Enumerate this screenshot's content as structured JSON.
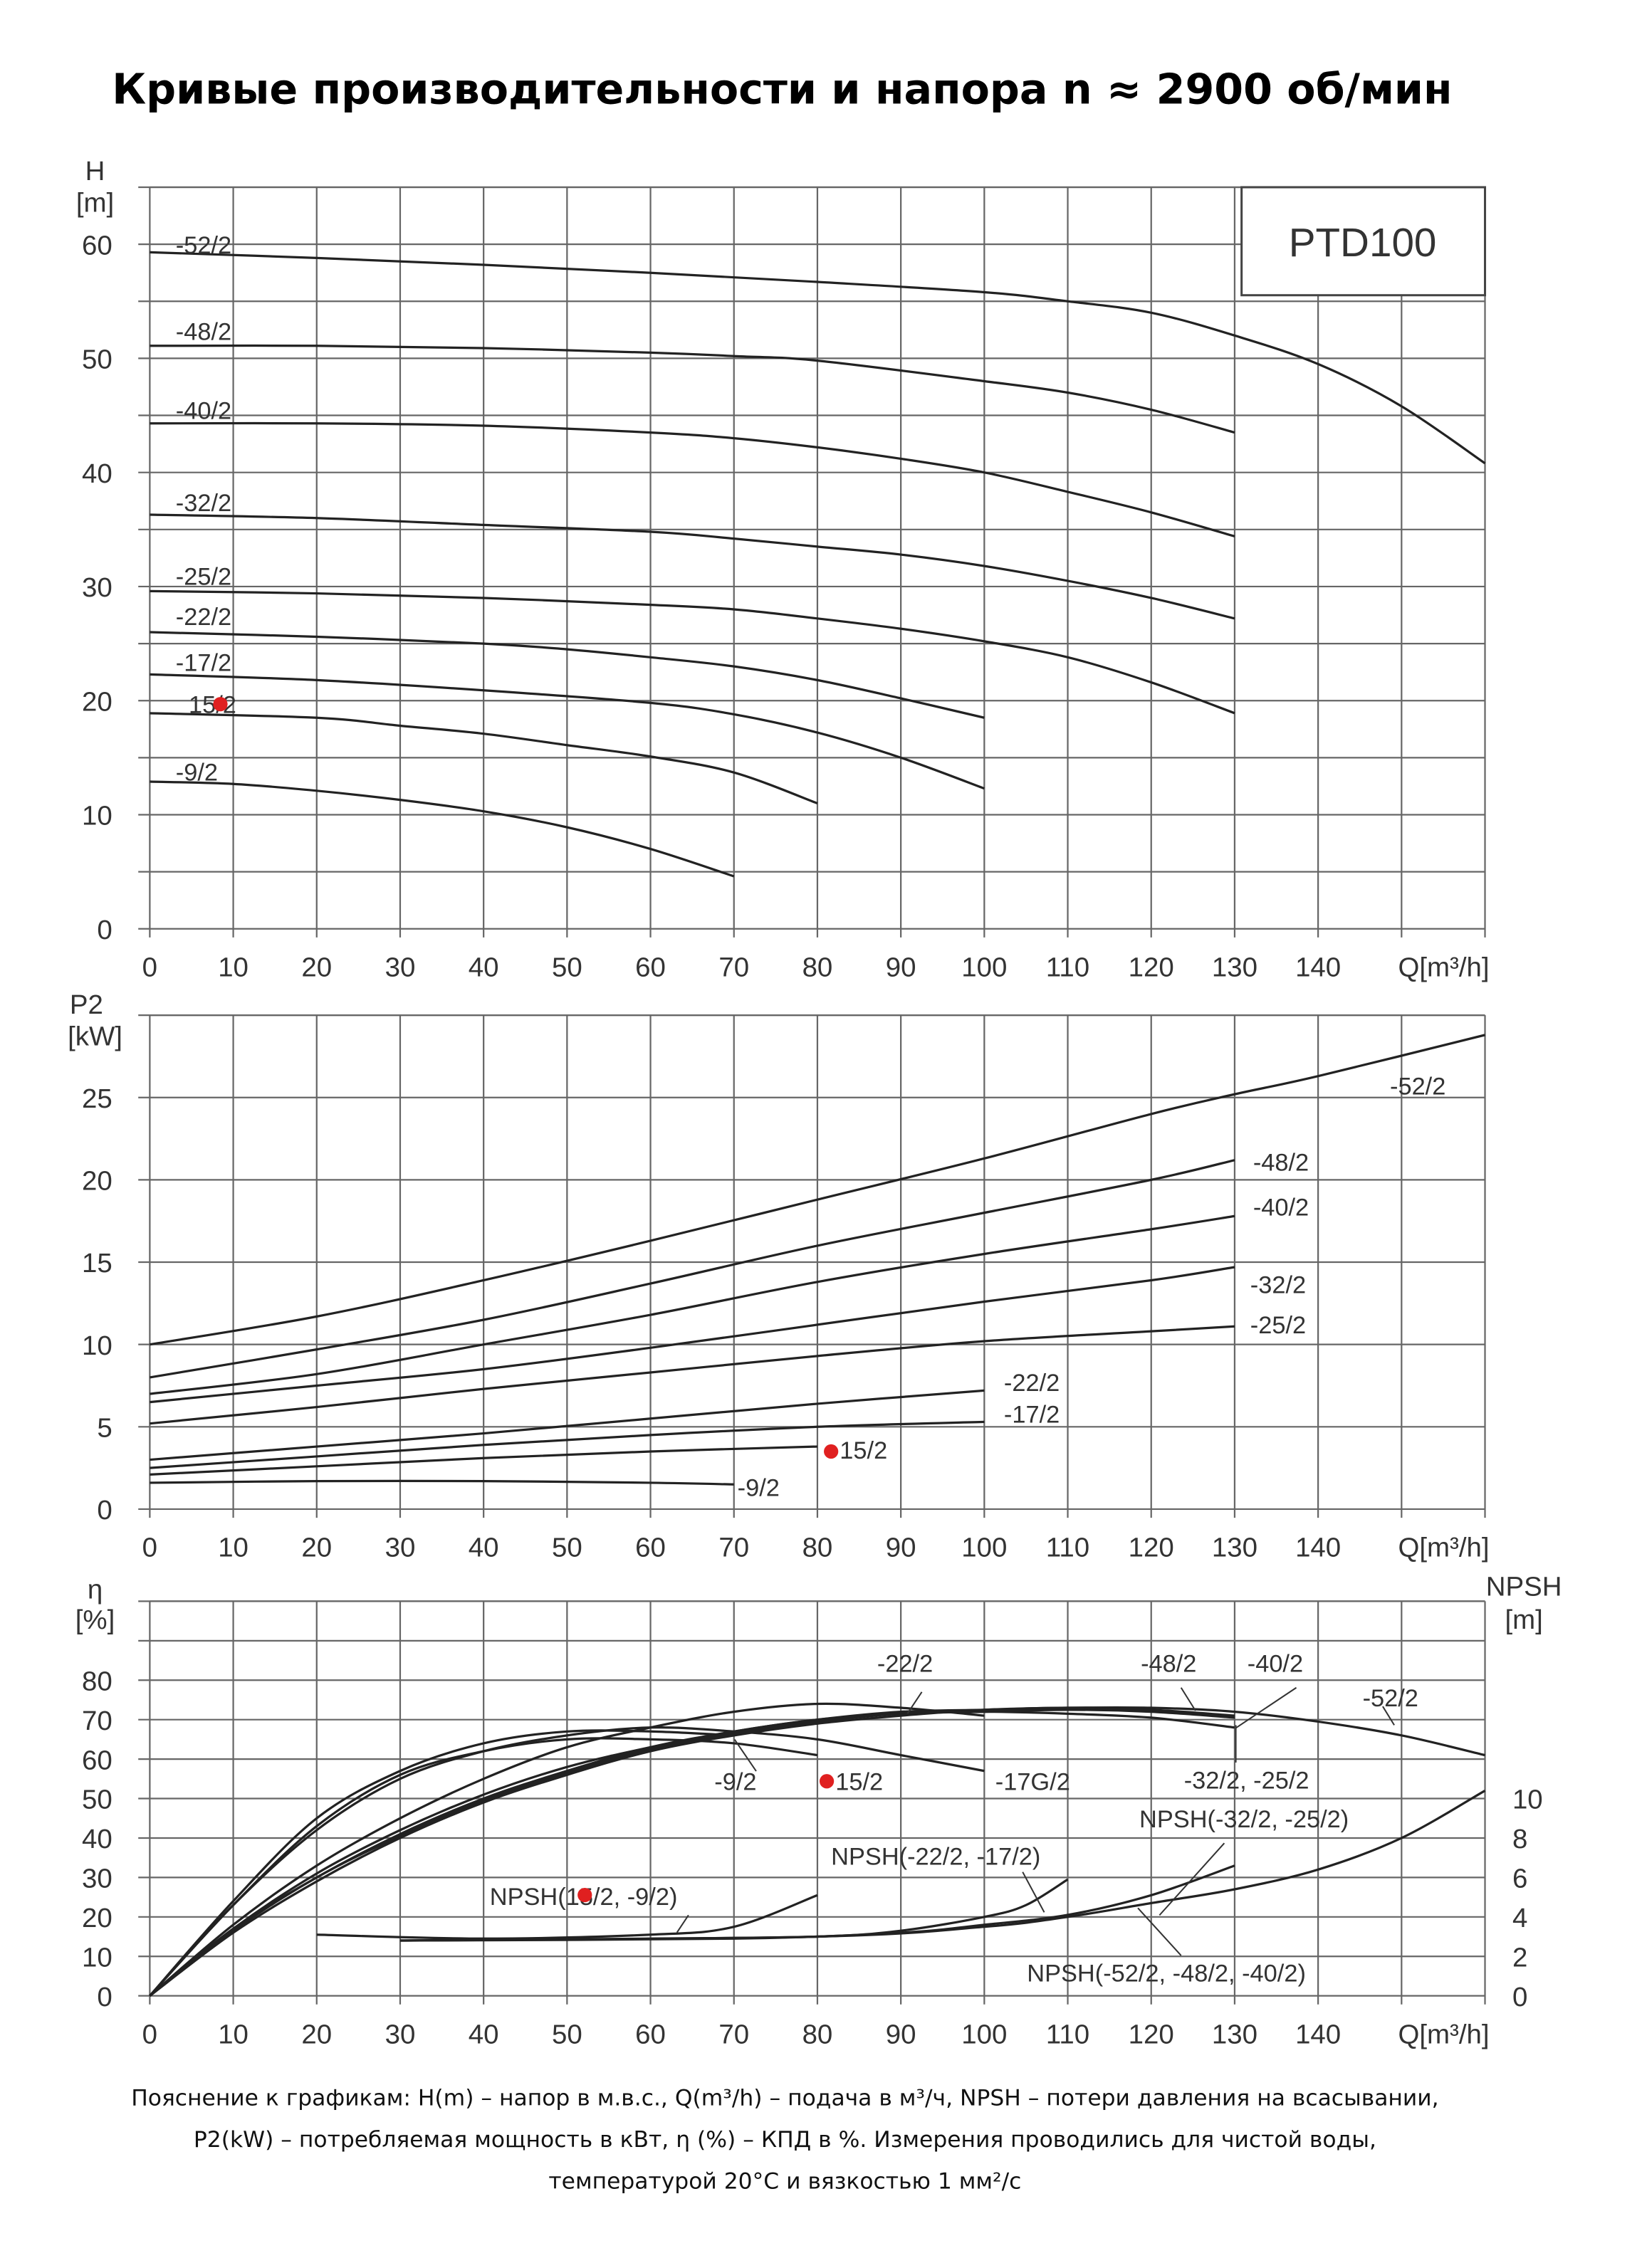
{
  "title": "Кривые производительности и напора n ≈ 2900 об/мин",
  "footer": [
    "Пояснение к графикам: H(m) – напор в м.в.с., Q(m³/h) – подача в м³/ч, NPSH – потери давления на всасывании,",
    "P2(kW) – потребляемая мощность в кВт, η (%) – КПД в %. Измерения проводились для чистой воды,",
    "температурой 20°C и вязкостью 1 мм²/с"
  ],
  "colors": {
    "curve": "#222222",
    "grid": "#666666",
    "marker": "#e02020"
  },
  "chart_data": [
    {
      "type": "line",
      "model_label": "PTD100",
      "ylabel_symbol": "H",
      "ylabel_unit": "[m]",
      "xlabel": "Q[m³/h]",
      "xlim": [
        0,
        160
      ],
      "ylim": [
        0,
        65
      ],
      "xticks": [
        0,
        10,
        20,
        30,
        40,
        50,
        60,
        70,
        80,
        90,
        100,
        110,
        120,
        130,
        140
      ],
      "yticks": [
        0,
        10,
        20,
        30,
        40,
        50,
        60
      ],
      "grid": true,
      "series": [
        {
          "name": "-52/2",
          "x": [
            0,
            20,
            40,
            60,
            80,
            100,
            110,
            120,
            130,
            140,
            150,
            160
          ],
          "y": [
            59.3,
            58.8,
            58.2,
            57.5,
            56.7,
            55.8,
            55,
            54,
            52,
            49.5,
            45.8,
            40.8
          ]
        },
        {
          "name": "-48/2",
          "x": [
            0,
            20,
            40,
            60,
            70,
            80,
            100,
            110,
            120,
            130
          ],
          "y": [
            51.1,
            51.1,
            50.9,
            50.5,
            50.2,
            49.8,
            48,
            47,
            45.5,
            43.5
          ]
        },
        {
          "name": "-40/2",
          "x": [
            0,
            20,
            40,
            60,
            70,
            80,
            90,
            100,
            110,
            120,
            130
          ],
          "y": [
            44.3,
            44.3,
            44.1,
            43.5,
            43,
            42.2,
            41.2,
            40,
            38.3,
            36.5,
            34.4
          ]
        },
        {
          "name": "-32/2",
          "x": [
            0,
            20,
            40,
            60,
            70,
            80,
            90,
            100,
            110,
            120,
            130
          ],
          "y": [
            36.3,
            36,
            35.4,
            34.8,
            34.2,
            33.5,
            32.8,
            31.8,
            30.5,
            29,
            27.2
          ]
        },
        {
          "name": "-25/2",
          "x": [
            0,
            20,
            40,
            60,
            70,
            80,
            90,
            100,
            110,
            120,
            130
          ],
          "y": [
            29.6,
            29.4,
            29,
            28.4,
            28,
            27.2,
            26.3,
            25.2,
            23.8,
            21.6,
            18.9
          ]
        },
        {
          "name": "-22/2",
          "x": [
            0,
            20,
            40,
            50,
            60,
            70,
            80,
            90,
            100
          ],
          "y": [
            26,
            25.6,
            25,
            24.5,
            23.8,
            23,
            21.8,
            20.2,
            18.5
          ]
        },
        {
          "name": "-17/2",
          "x": [
            0,
            20,
            40,
            60,
            70,
            80,
            90,
            100
          ],
          "y": [
            22.3,
            21.8,
            20.9,
            19.8,
            18.8,
            17.2,
            15,
            12.3
          ]
        },
        {
          "name": "15/2",
          "x": [
            0,
            20,
            30,
            40,
            50,
            60,
            70,
            80
          ],
          "y": [
            18.9,
            18.5,
            17.8,
            17.1,
            16.1,
            15.1,
            13.7,
            11
          ]
        },
        {
          "name": "-9/2",
          "x": [
            0,
            10,
            20,
            30,
            40,
            50,
            60,
            70
          ],
          "y": [
            12.9,
            12.7,
            12.1,
            11.3,
            10.3,
            8.9,
            7,
            4.6
          ]
        }
      ]
    },
    {
      "type": "line",
      "ylabel_symbol": "P2",
      "ylabel_unit": "[kW]",
      "xlabel": "Q[m³/h]",
      "xlim": [
        0,
        160
      ],
      "ylim": [
        0,
        30
      ],
      "xticks": [
        0,
        10,
        20,
        30,
        40,
        50,
        60,
        70,
        80,
        90,
        100,
        110,
        120,
        130,
        140
      ],
      "yticks": [
        0,
        5,
        10,
        15,
        20,
        25
      ],
      "grid": true,
      "series": [
        {
          "name": "-52/2",
          "x": [
            0,
            20,
            40,
            60,
            80,
            100,
            120,
            130,
            140,
            160
          ],
          "y": [
            10,
            11.7,
            13.9,
            16.3,
            18.8,
            21.3,
            24,
            25.2,
            26.3,
            28.8
          ]
        },
        {
          "name": "-48/2",
          "x": [
            0,
            20,
            40,
            60,
            80,
            100,
            120,
            130
          ],
          "y": [
            8,
            9.7,
            11.5,
            13.7,
            16,
            18,
            20,
            21.2
          ]
        },
        {
          "name": "-40/2",
          "x": [
            0,
            20,
            40,
            60,
            80,
            100,
            120,
            130
          ],
          "y": [
            7,
            8.2,
            10,
            11.8,
            13.8,
            15.5,
            17,
            17.8
          ]
        },
        {
          "name": "-32/2",
          "x": [
            0,
            20,
            40,
            60,
            80,
            100,
            120,
            130
          ],
          "y": [
            6.5,
            7.5,
            8.5,
            9.8,
            11.2,
            12.6,
            13.9,
            14.7
          ]
        },
        {
          "name": "-25/2",
          "x": [
            0,
            20,
            40,
            60,
            80,
            100,
            120,
            130
          ],
          "y": [
            5.2,
            6.2,
            7.3,
            8.3,
            9.3,
            10.2,
            10.8,
            11.1
          ]
        },
        {
          "name": "-22/2",
          "x": [
            0,
            20,
            40,
            60,
            80,
            100
          ],
          "y": [
            3,
            3.8,
            4.6,
            5.5,
            6.4,
            7.2
          ]
        },
        {
          "name": "-17/2",
          "x": [
            0,
            20,
            40,
            60,
            80,
            100
          ],
          "y": [
            2.5,
            3.2,
            3.9,
            4.5,
            5,
            5.3
          ]
        },
        {
          "name": "15/2",
          "x": [
            0,
            20,
            40,
            60,
            80
          ],
          "y": [
            2.1,
            2.6,
            3.1,
            3.5,
            3.8
          ]
        },
        {
          "name": "-9/2",
          "x": [
            0,
            20,
            40,
            60,
            70
          ],
          "y": [
            1.6,
            1.7,
            1.7,
            1.6,
            1.5
          ]
        }
      ]
    },
    {
      "type": "line",
      "ylabel_symbol": "η",
      "ylabel_unit": "[%]",
      "y2label_symbol": "NPSH",
      "y2label_unit": "[m]",
      "xlabel": "Q[m³/h]",
      "xlim": [
        0,
        160
      ],
      "ylim": [
        0,
        100
      ],
      "y2lim": [
        0,
        20
      ],
      "xticks": [
        0,
        10,
        20,
        30,
        40,
        50,
        60,
        70,
        80,
        90,
        100,
        110,
        120,
        130,
        140
      ],
      "yticks": [
        0,
        10,
        20,
        30,
        40,
        50,
        60,
        70,
        80
      ],
      "y2ticks": [
        0,
        2,
        4,
        6,
        8,
        10
      ],
      "grid": true,
      "series": [
        {
          "name": "-9/2",
          "axis": "eta",
          "x": [
            0,
            10,
            20,
            30,
            40,
            50,
            60,
            70
          ],
          "y": [
            0,
            24,
            45,
            57,
            64,
            67,
            67,
            66
          ]
        },
        {
          "name": "15/2",
          "axis": "eta",
          "x": [
            0,
            10,
            20,
            30,
            40,
            50,
            60,
            70,
            80
          ],
          "y": [
            0,
            23,
            43,
            56,
            62,
            65,
            65,
            64,
            61
          ]
        },
        {
          "name": "-17G/2",
          "axis": "eta",
          "x": [
            0,
            10,
            20,
            30,
            40,
            50,
            60,
            70,
            80,
            90,
            100
          ],
          "y": [
            0,
            23,
            42,
            55,
            62,
            66,
            68,
            67,
            65,
            61,
            57
          ]
        },
        {
          "name": "-22/2",
          "axis": "eta",
          "x": [
            0,
            10,
            20,
            30,
            40,
            50,
            60,
            70,
            80,
            90,
            100
          ],
          "y": [
            0,
            18,
            33,
            45,
            55,
            63,
            68,
            72,
            74,
            73,
            71
          ]
        },
        {
          "name": "-32/2, -25/2",
          "axis": "eta",
          "x": [
            0,
            10,
            20,
            30,
            40,
            50,
            60,
            70,
            80,
            90,
            100,
            110,
            120,
            130
          ],
          "y": [
            0,
            17,
            31,
            42,
            51,
            58,
            63,
            67,
            70,
            71.5,
            72,
            71.5,
            70.5,
            68
          ]
        },
        {
          "name": "-48/2",
          "axis": "eta",
          "x": [
            0,
            10,
            20,
            30,
            40,
            50,
            60,
            70,
            80,
            90,
            100,
            110,
            120,
            130
          ],
          "y": [
            0,
            17,
            30,
            41,
            50,
            57,
            63,
            67,
            70,
            72,
            72.5,
            73,
            72.5,
            71
          ]
        },
        {
          "name": "-40/2",
          "axis": "eta",
          "x": [
            0,
            10,
            20,
            30,
            40,
            50,
            60,
            70,
            80,
            90,
            100,
            110,
            120,
            130
          ],
          "y": [
            0,
            16.5,
            30,
            40.5,
            49.5,
            56.5,
            62.5,
            66.5,
            69.5,
            71.5,
            72,
            72.5,
            72,
            70.5
          ]
        },
        {
          "name": "-52/2",
          "axis": "eta",
          "x": [
            0,
            10,
            20,
            30,
            40,
            50,
            60,
            70,
            80,
            90,
            100,
            110,
            120,
            130,
            140,
            150,
            160
          ],
          "y": [
            0,
            16,
            29,
            40,
            49,
            56,
            62,
            66,
            69,
            71,
            72.5,
            73,
            73,
            72,
            69.5,
            66,
            61
          ]
        },
        {
          "name": "NPSH(15/2, -9/2)",
          "axis": "npsh",
          "x": [
            20,
            40,
            60,
            70,
            80
          ],
          "y": [
            3.1,
            2.9,
            3.1,
            3.5,
            5.1
          ]
        },
        {
          "name": "NPSH(-22/2, -17/2)",
          "axis": "npsh",
          "x": [
            30,
            60,
            80,
            90,
            100,
            105,
            110
          ],
          "y": [
            2.8,
            2.9,
            3,
            3.3,
            4,
            4.6,
            5.9
          ]
        },
        {
          "name": "NPSH(-32/2, -25/2)",
          "axis": "npsh",
          "x": [
            30,
            70,
            90,
            100,
            110,
            120,
            130
          ],
          "y": [
            2.8,
            2.9,
            3.2,
            3.6,
            4.1,
            5.1,
            6.6
          ]
        },
        {
          "name": "NPSH(-52/2, -48/2, -40/2)",
          "axis": "npsh",
          "x": [
            30,
            80,
            100,
            110,
            120,
            130,
            140,
            150,
            160
          ],
          "y": [
            2.8,
            3,
            3.5,
            4,
            4.7,
            5.4,
            6.4,
            8,
            10.4
          ]
        }
      ]
    }
  ]
}
